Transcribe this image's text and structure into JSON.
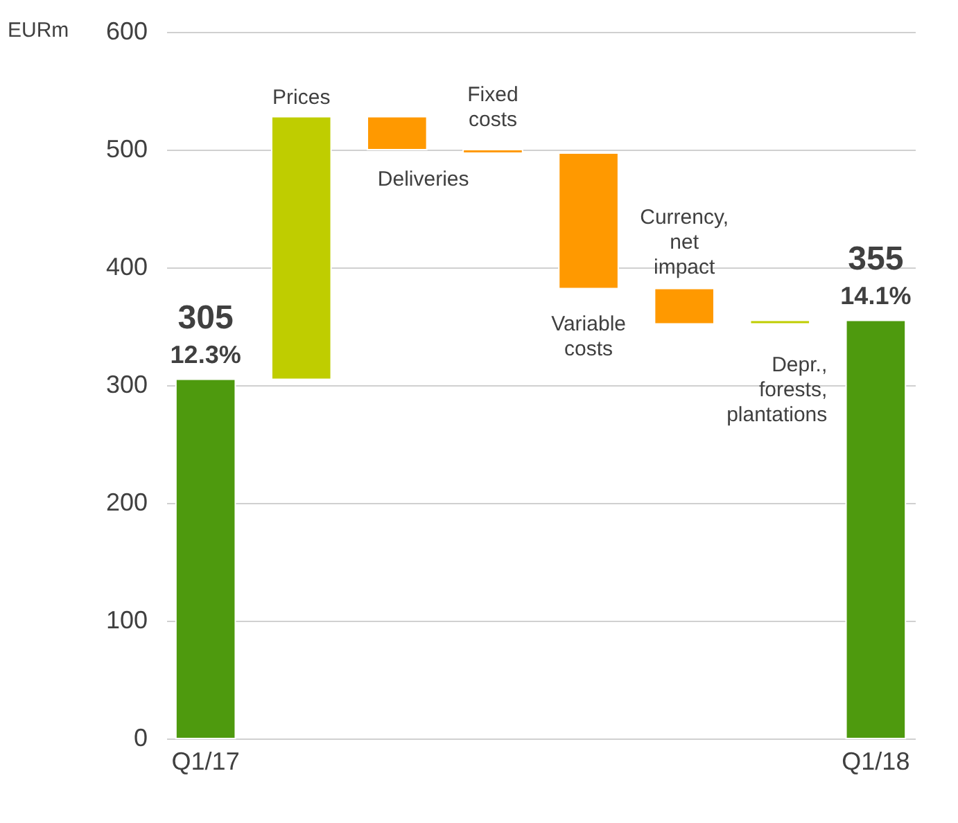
{
  "chart_data": {
    "type": "bar",
    "categories": [
      "Q1/17",
      "Prices",
      "Deliveries",
      "Fixed costs",
      "Variable costs",
      "Currency, net impact",
      "Depr., forests, plantations",
      "Q1/18"
    ],
    "base": [
      0,
      305,
      528,
      500,
      497,
      382,
      352,
      0
    ],
    "values": [
      305,
      223,
      -28,
      -3,
      -115,
      -30,
      3,
      355
    ],
    "colors": [
      "#4e9a0e",
      "#bfcd00",
      "#ff9900",
      "#ff9900",
      "#ff9900",
      "#ff9900",
      "#bfcd00",
      "#4e9a0e"
    ],
    "value_labels": [
      "305",
      null,
      null,
      null,
      null,
      null,
      null,
      "355"
    ],
    "annotations": [
      {
        "text": "12.3%",
        "x": "Q1/17",
        "y": 305
      },
      {
        "text": "14.1%",
        "x": "Q1/18",
        "y": 355
      }
    ],
    "ylabel": "EURm",
    "ylim": [
      0,
      600
    ],
    "yticks": [
      0,
      100,
      200,
      300,
      400,
      500,
      600
    ],
    "grid": "y"
  }
}
